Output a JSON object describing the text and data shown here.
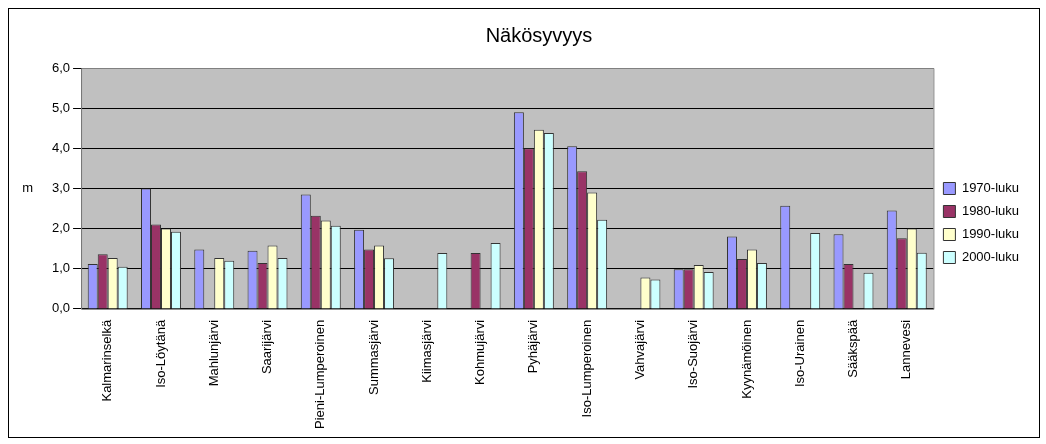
{
  "chart_data": {
    "type": "bar",
    "title": "Näkösyvyys",
    "ylabel": "m",
    "categories": [
      "Kalmarinselkä",
      "Iso-Löytänä",
      "Mahlunjärvi",
      "Saarijärvi",
      "Pieni-Lumperoinen",
      "Summasjärvi",
      "Kiimasjärvi",
      "Kohmujärvi",
      "Pyhäjärvi",
      "Iso-Lumperoinen",
      "Vahvajärvi",
      "Iso-Suojärvi",
      "Kyynämöinen",
      "Iso-Urainen",
      "Sääkspää",
      "Lannevesi"
    ],
    "series": [
      {
        "name": "1970-luku",
        "color": "#9999ff",
        "values": [
          1.12,
          3.0,
          1.48,
          1.45,
          2.85,
          1.97,
          null,
          null,
          4.9,
          4.05,
          null,
          0.99,
          1.8,
          2.57,
          1.86,
          2.45
        ]
      },
      {
        "name": "1980-luku",
        "color": "#993366",
        "values": [
          1.36,
          2.1,
          null,
          1.14,
          2.32,
          1.48,
          null,
          1.39,
          4.0,
          3.43,
          null,
          0.99,
          1.24,
          null,
          1.12,
          1.76
        ]
      },
      {
        "name": "1990-luku",
        "color": "#ffffcc",
        "values": [
          1.27,
          2.0,
          1.27,
          1.58,
          2.2,
          1.58,
          null,
          null,
          4.46,
          2.9,
          0.78,
          1.09,
          1.48,
          null,
          null,
          2.0
        ]
      },
      {
        "name": "2000-luku",
        "color": "#ccffff",
        "values": [
          1.05,
          1.92,
          1.2,
          1.27,
          2.07,
          1.26,
          1.39,
          1.64,
          4.38,
          2.22,
          0.73,
          0.92,
          1.14,
          1.89,
          0.9,
          1.4
        ]
      }
    ],
    "ylim": [
      0,
      6
    ],
    "yticks": [
      {
        "value": 0,
        "label": "0,0"
      },
      {
        "value": 1,
        "label": "1,0"
      },
      {
        "value": 2,
        "label": "2,0"
      },
      {
        "value": 3,
        "label": "3,0"
      },
      {
        "value": 4,
        "label": "4,0"
      },
      {
        "value": 5,
        "label": "5,0"
      },
      {
        "value": 6,
        "label": "6,0"
      }
    ],
    "grid": "y",
    "legend": "right"
  }
}
